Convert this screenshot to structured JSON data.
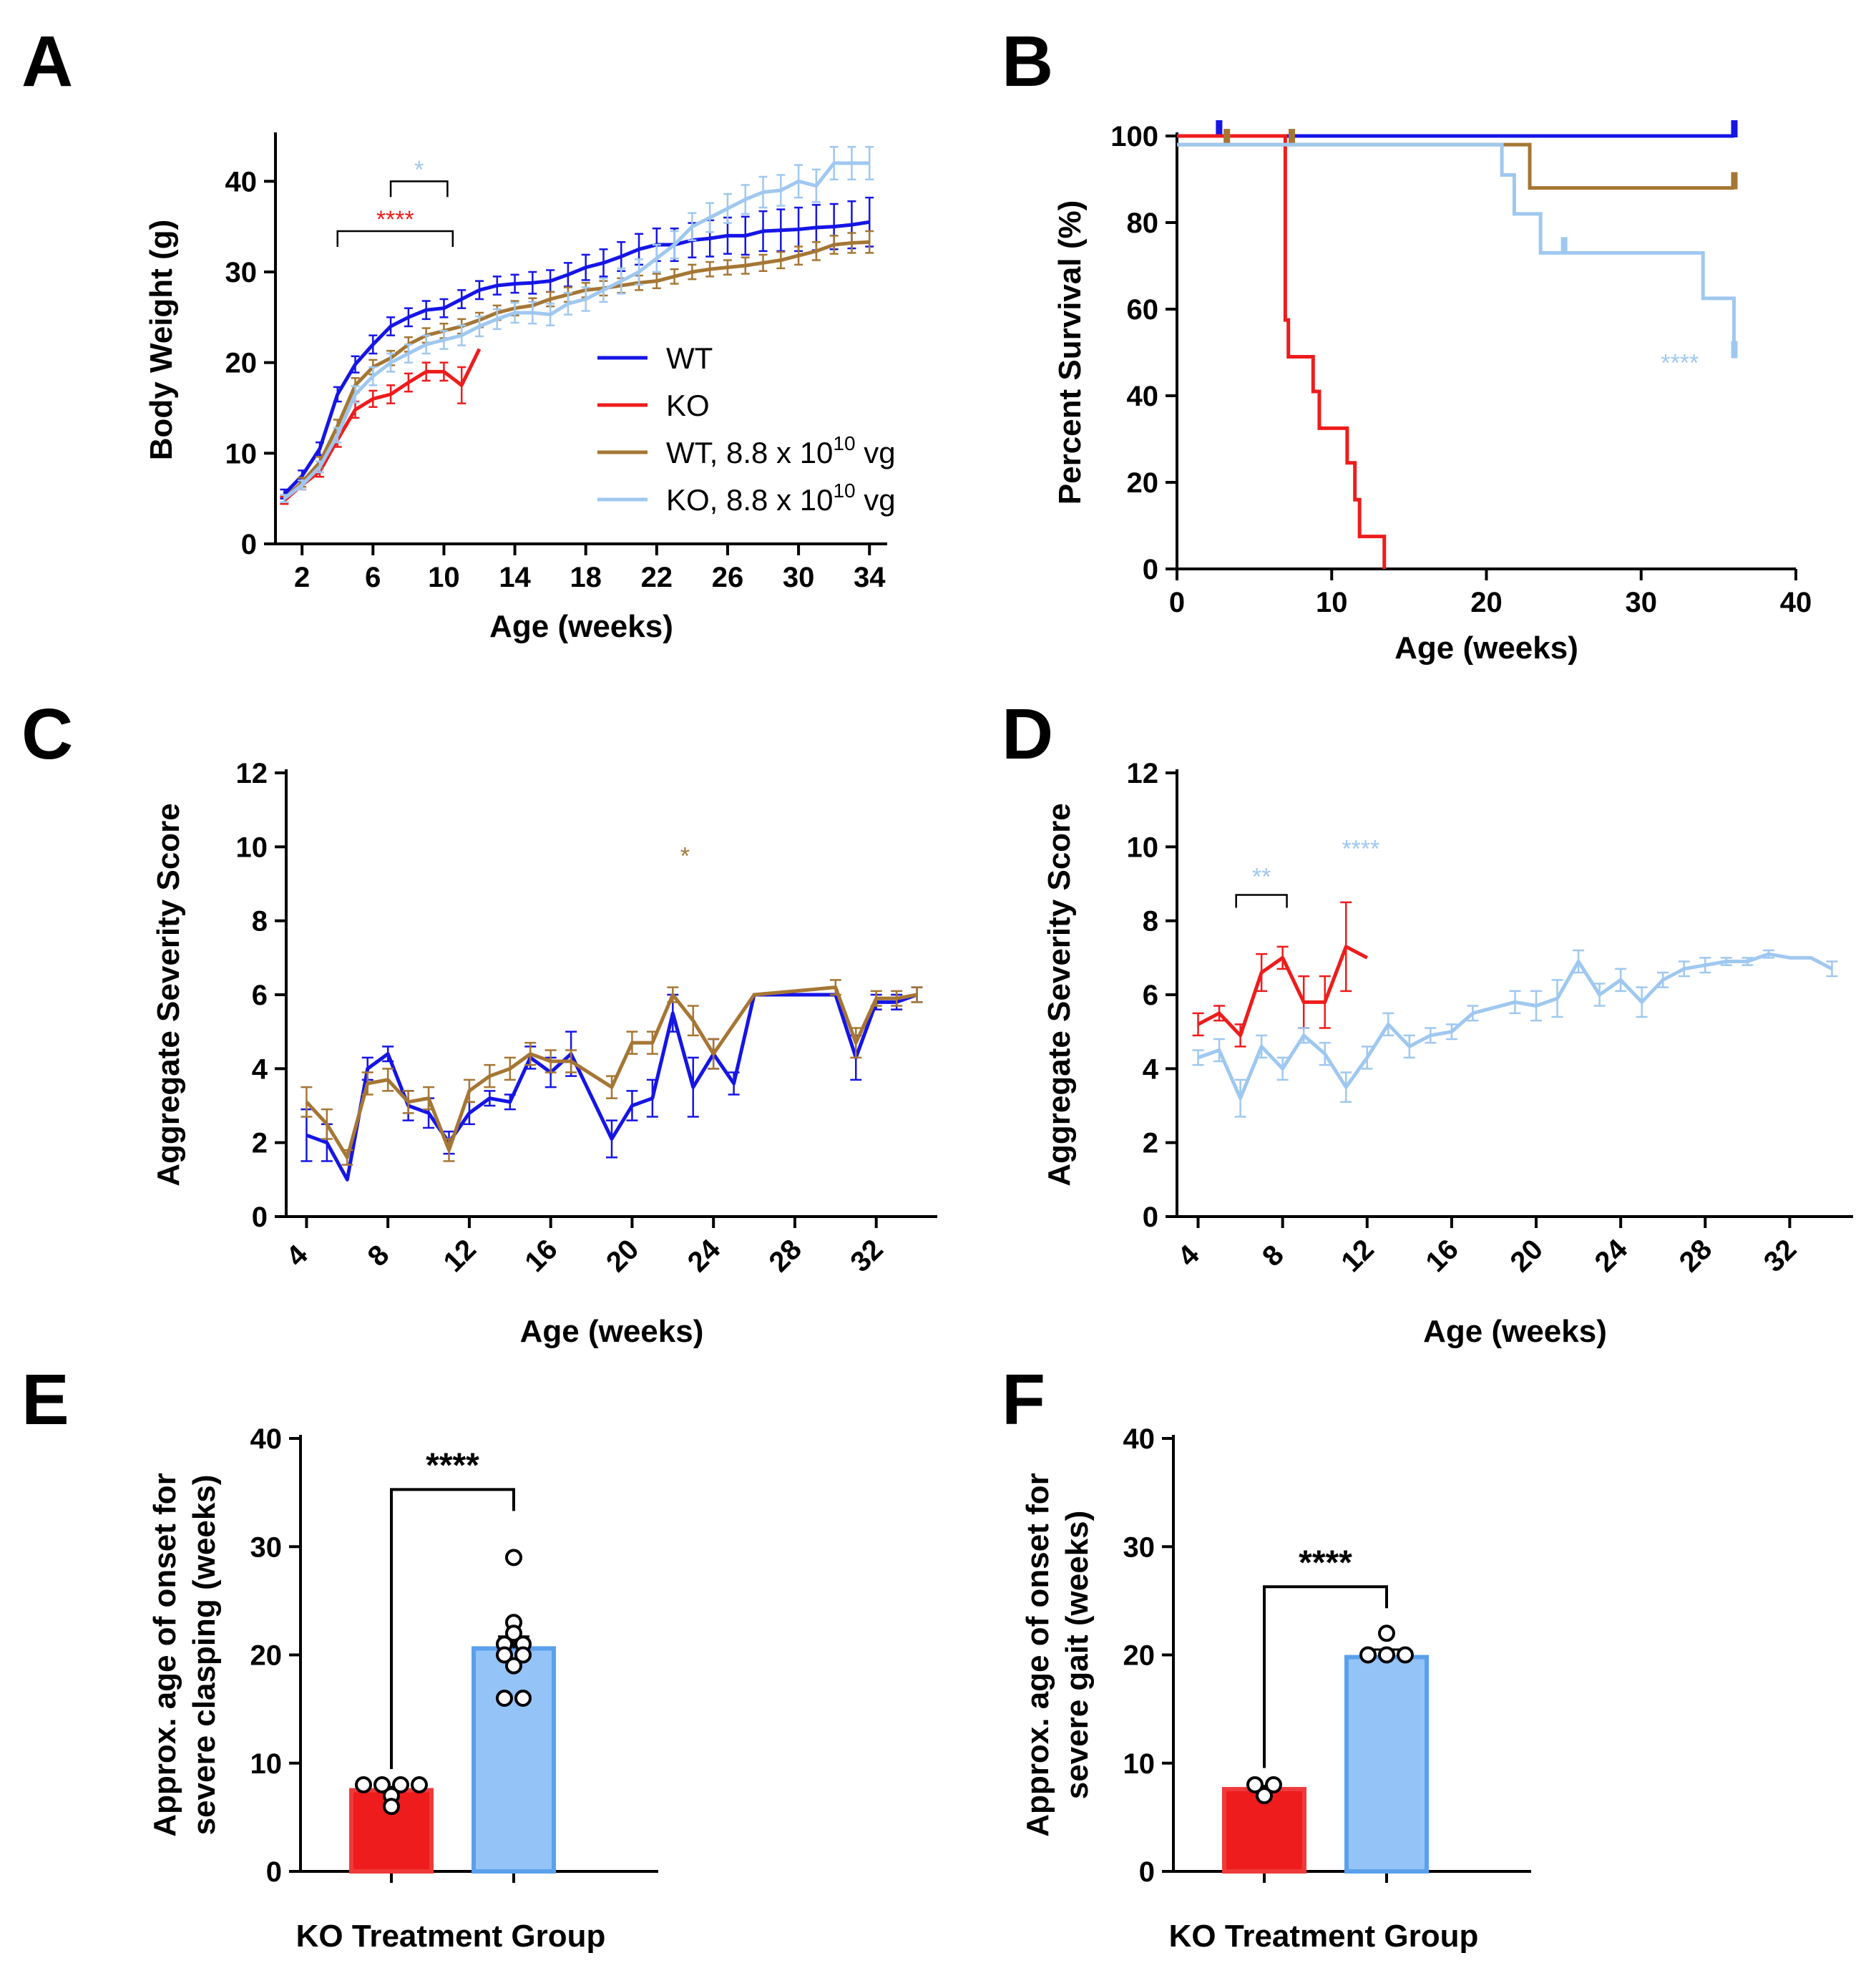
{
  "colors": {
    "wt": "#1515e6",
    "ko": "#ee1c1c",
    "wt_treated": "#a57634",
    "ko_treated": "#9fc8f0",
    "bar_ko": "#ee1c1c",
    "bar_ko_treated": "#94c3f7",
    "sig_red": "#ee1c1c",
    "sig_lightblue": "#9fc8f0",
    "sig_brown": "#a57634"
  },
  "chart_data": [
    {
      "id": "A",
      "panel_label": "A",
      "type": "line",
      "xlabel": "Age (weeks)",
      "ylabel": "Body Weight (g)",
      "xlim": [
        0.5,
        35
      ],
      "ylim": [
        0,
        45
      ],
      "x_ticks": [
        2,
        6,
        10,
        14,
        18,
        22,
        26,
        30,
        34
      ],
      "y_ticks": [
        0,
        10,
        20,
        30,
        40
      ],
      "legend": [
        {
          "label": "WT",
          "color_key": "wt"
        },
        {
          "label": "KO",
          "color_key": "ko"
        },
        {
          "label": "WT, 8.8 x 10",
          "sup": "10",
          "suffix": " vg",
          "color_key": "wt_treated"
        },
        {
          "label": "KO, 8.8 x 10",
          "sup": "10",
          "suffix": " vg",
          "color_key": "ko_treated"
        }
      ],
      "series": [
        {
          "name": "WT",
          "color_key": "wt",
          "x": [
            1,
            2,
            3,
            4,
            5,
            6,
            7,
            8,
            9,
            10,
            11,
            12,
            13,
            14,
            15,
            16,
            17,
            18,
            19,
            20,
            21,
            22,
            23,
            24,
            25,
            26,
            27,
            28,
            29,
            30,
            31,
            32,
            33,
            34
          ],
          "y": [
            5.5,
            7.5,
            10.5,
            16.5,
            19.8,
            22,
            24,
            25,
            25.8,
            26,
            27,
            28,
            28.5,
            28.7,
            28.8,
            29,
            29.7,
            30.5,
            31,
            31.7,
            32.5,
            33,
            33,
            33.5,
            33.7,
            34,
            34,
            34.5,
            34.6,
            34.7,
            34.9,
            35,
            35.2,
            35.5
          ],
          "err": [
            0.5,
            0.6,
            0.7,
            0.8,
            0.9,
            1,
            1,
            1,
            1,
            1,
            1,
            1,
            1,
            1,
            1.2,
            1.2,
            1.3,
            1.4,
            1.5,
            1.6,
            1.7,
            1.8,
            1.8,
            1.9,
            2,
            2,
            2.1,
            2.2,
            2.3,
            2.4,
            2.5,
            2.5,
            2.6,
            2.7
          ]
        },
        {
          "name": "KO",
          "color_key": "ko",
          "x": [
            1,
            2,
            3,
            4,
            5,
            6,
            7,
            8,
            9,
            10,
            11,
            12
          ],
          "y": [
            4.8,
            6.5,
            8,
            11.5,
            14.8,
            16,
            16.5,
            17.8,
            19,
            19,
            17.5,
            21.5
          ],
          "err": [
            0.4,
            0.5,
            0.6,
            0.8,
            0.9,
            0.9,
            1,
            1,
            1,
            1,
            2,
            0
          ]
        },
        {
          "name": "WT, 8.8 x 10^10 vg",
          "color_key": "wt_treated",
          "x": [
            1,
            2,
            3,
            4,
            5,
            6,
            7,
            8,
            9,
            10,
            11,
            12,
            13,
            14,
            15,
            16,
            17,
            18,
            19,
            20,
            21,
            22,
            23,
            24,
            25,
            26,
            27,
            28,
            29,
            30,
            31,
            32,
            33,
            34
          ],
          "y": [
            5,
            6.8,
            9,
            13,
            17.5,
            19.5,
            20.5,
            22,
            23,
            23.5,
            24,
            24.7,
            25.5,
            26,
            26.3,
            27,
            27.5,
            28,
            28.2,
            28.5,
            28.8,
            29,
            29.5,
            30,
            30.3,
            30.5,
            30.7,
            31,
            31.3,
            31.8,
            32.3,
            33,
            33.2,
            33.3
          ],
          "err": [
            0.4,
            0.5,
            0.6,
            0.7,
            0.8,
            0.8,
            0.8,
            0.8,
            0.8,
            0.8,
            0.8,
            0.8,
            0.8,
            0.8,
            0.8,
            0.8,
            0.8,
            0.8,
            0.8,
            0.8,
            0.8,
            0.8,
            0.8,
            0.8,
            0.8,
            0.8,
            0.9,
            0.9,
            0.9,
            1,
            1,
            1,
            1.1,
            1.2
          ]
        },
        {
          "name": "KO, 8.8 x 10^10 vg",
          "color_key": "ko_treated",
          "x": [
            1,
            2,
            3,
            4,
            5,
            6,
            7,
            8,
            9,
            10,
            11,
            12,
            13,
            14,
            15,
            16,
            17,
            18,
            19,
            20,
            21,
            22,
            23,
            24,
            25,
            26,
            27,
            28,
            29,
            30,
            31,
            32,
            33,
            34
          ],
          "y": [
            5,
            6.5,
            8.5,
            12,
            16.5,
            18.5,
            20,
            21,
            22,
            22.5,
            23,
            24,
            24.8,
            25.5,
            25.5,
            25.3,
            26.5,
            27,
            28,
            29,
            30,
            31.5,
            33,
            35,
            36,
            37,
            38,
            38.8,
            39,
            40,
            39.5,
            42,
            42,
            42
          ],
          "err": [
            0.4,
            0.5,
            0.6,
            0.8,
            0.9,
            1,
            1,
            1,
            1,
            1,
            1.1,
            1.1,
            1.1,
            1.1,
            1.2,
            1.2,
            1.2,
            1.3,
            1.3,
            1.4,
            1.4,
            1.5,
            1.5,
            1.5,
            1.6,
            1.6,
            1.6,
            1.7,
            1.7,
            1.8,
            1.8,
            1.8,
            1.8,
            1.8
          ]
        }
      ],
      "annotations": [
        {
          "text": "*",
          "color_key": "sig_lightblue",
          "x1": 7,
          "x2": 10.2,
          "y": 40,
          "text_y": 41.5
        },
        {
          "text": "****",
          "color_key": "sig_red",
          "x1": 4,
          "x2": 10.5,
          "y": 34.5,
          "text_y": 36
        }
      ]
    },
    {
      "id": "B",
      "panel_label": "B",
      "type": "line",
      "subtype": "kaplan-meier",
      "xlabel": "Age (weeks)",
      "ylabel": "Percent Survival (%)",
      "xlim": [
        0,
        40
      ],
      "ylim": [
        0,
        100
      ],
      "x_ticks": [
        0,
        10,
        20,
        30,
        40
      ],
      "y_ticks": [
        0,
        20,
        40,
        60,
        80,
        100
      ],
      "series": [
        {
          "name": "WT",
          "color_key": "wt",
          "steps": [
            [
              0,
              100
            ],
            [
              36,
              100
            ]
          ],
          "censor_x": [
            2.7,
            36
          ]
        },
        {
          "name": "KO",
          "color_key": "ko",
          "steps": [
            [
              0,
              100
            ],
            [
              7,
              100
            ],
            [
              7,
              57.5
            ],
            [
              7.2,
              57.5
            ],
            [
              7.2,
              49
            ],
            [
              8.8,
              49
            ],
            [
              8.8,
              41
            ],
            [
              9.2,
              41
            ],
            [
              9.2,
              32.5
            ],
            [
              11,
              32.5
            ],
            [
              11,
              24.5
            ],
            [
              11.5,
              24.5
            ],
            [
              11.5,
              16
            ],
            [
              11.8,
              16
            ],
            [
              11.8,
              7.5
            ],
            [
              13.4,
              7.5
            ],
            [
              13.4,
              0
            ]
          ],
          "censor_x": []
        },
        {
          "name": "WT, 8.8 x 10^10 vg",
          "color_key": "wt_treated",
          "steps": [
            [
              0,
              98
            ],
            [
              22.8,
              98
            ],
            [
              22.8,
              88
            ],
            [
              36,
              88
            ]
          ],
          "censor_x": [
            3.2,
            7.4,
            36
          ]
        },
        {
          "name": "KO, 8.8 x 10^10 vg",
          "color_key": "ko_treated",
          "steps": [
            [
              0,
              98
            ],
            [
              21,
              98
            ],
            [
              21,
              91
            ],
            [
              21.8,
              91
            ],
            [
              21.8,
              82
            ],
            [
              23.5,
              82
            ],
            [
              23.5,
              73
            ],
            [
              34,
              73
            ],
            [
              34,
              62.5
            ],
            [
              36,
              62.5
            ],
            [
              36,
              49
            ]
          ],
          "censor_x": [
            25,
            36
          ]
        }
      ],
      "annotations": [
        {
          "text": "****",
          "color_key": "sig_lightblue",
          "x": 32.5,
          "y": 48
        }
      ]
    },
    {
      "id": "C",
      "panel_label": "C",
      "type": "line",
      "xlabel": "Age (weeks)",
      "ylabel": "Aggregate Severity Score",
      "xlim": [
        3,
        35
      ],
      "ylim": [
        0,
        12
      ],
      "x_ticks": [
        4,
        8,
        12,
        16,
        20,
        24,
        28,
        32
      ],
      "y_ticks": [
        0,
        2,
        4,
        6,
        8,
        10,
        12
      ],
      "series": [
        {
          "name": "WT",
          "color_key": "wt",
          "x": [
            4,
            5,
            6,
            7,
            8,
            9,
            10,
            11,
            12,
            13,
            14,
            15,
            16,
            17,
            19,
            20,
            21,
            22,
            23,
            24,
            25,
            26,
            30,
            31,
            32,
            33,
            34
          ],
          "y": [
            2.2,
            2,
            1,
            4,
            4.4,
            3,
            2.8,
            2,
            2.8,
            3.2,
            3.1,
            4.3,
            3.9,
            4.4,
            2.1,
            3,
            3.2,
            5.5,
            3.5,
            4.4,
            3.6,
            6,
            6,
            4.3,
            5.8,
            5.8,
            6
          ],
          "err": [
            0.7,
            0.5,
            0,
            0.3,
            0.2,
            0.4,
            0.4,
            0.3,
            0.3,
            0.2,
            0.2,
            0.3,
            0.4,
            0.6,
            0.5,
            0.4,
            0.5,
            0.5,
            0.8,
            0.4,
            0.3,
            0,
            0,
            0.6,
            0.2,
            0.2,
            0.2
          ]
        },
        {
          "name": "WT, 8.8 x 10^10 vg",
          "color_key": "wt_treated",
          "x": [
            4,
            5,
            6,
            7,
            8,
            9,
            10,
            11,
            12,
            13,
            14,
            15,
            16,
            17,
            19,
            20,
            21,
            22,
            23,
            24,
            26,
            30,
            31,
            32,
            33,
            34
          ],
          "y": [
            3.1,
            2.5,
            1.6,
            3.6,
            3.7,
            3.1,
            3.2,
            1.8,
            3.4,
            3.8,
            4,
            4.4,
            4.2,
            4.2,
            3.5,
            4.7,
            4.7,
            6,
            5.3,
            4.4,
            6,
            6.2,
            4.7,
            5.9,
            5.9,
            6
          ],
          "err": [
            0.4,
            0.4,
            0.2,
            0.3,
            0.3,
            0.3,
            0.3,
            0.3,
            0.3,
            0.3,
            0.3,
            0.3,
            0.3,
            0.3,
            0.3,
            0.3,
            0.3,
            0.2,
            0.4,
            0.4,
            0,
            0.2,
            0.4,
            0.2,
            0.2,
            0.2
          ]
        }
      ],
      "annotations": [
        {
          "text": "*",
          "color_key": "sig_brown",
          "x": 22.6,
          "y": 9.8
        }
      ]
    },
    {
      "id": "D",
      "panel_label": "D",
      "type": "line",
      "xlabel": "Age (weeks)",
      "ylabel": "Aggregate Severity Score",
      "xlim": [
        3,
        35
      ],
      "ylim": [
        0,
        12
      ],
      "x_ticks": [
        4,
        8,
        12,
        16,
        20,
        24,
        28,
        32
      ],
      "y_ticks": [
        0,
        2,
        4,
        6,
        8,
        10,
        12
      ],
      "series": [
        {
          "name": "KO",
          "color_key": "ko",
          "x": [
            4,
            5,
            6,
            7,
            8,
            9,
            10,
            11,
            12
          ],
          "y": [
            5.2,
            5.5,
            4.9,
            6.6,
            7,
            5.8,
            5.8,
            7.3,
            7
          ],
          "err": [
            0.3,
            0.2,
            0.3,
            0.5,
            0.3,
            0.7,
            0.7,
            1.2,
            0
          ]
        },
        {
          "name": "KO, 8.8 x 10^10 vg",
          "color_key": "ko_treated",
          "x": [
            4,
            5,
            6,
            7,
            8,
            9,
            10,
            11,
            12,
            13,
            14,
            15,
            16,
            17,
            19,
            20,
            21,
            22,
            23,
            24,
            25,
            26,
            27,
            28,
            29,
            30,
            31,
            32,
            33,
            34
          ],
          "y": [
            4.3,
            4.5,
            3.2,
            4.6,
            4,
            4.9,
            4.4,
            3.5,
            4.3,
            5.2,
            4.6,
            4.9,
            5,
            5.5,
            5.8,
            5.7,
            5.9,
            6.9,
            6,
            6.4,
            5.8,
            6.4,
            6.7,
            6.8,
            6.9,
            6.9,
            7.1,
            7,
            7,
            6.7
          ],
          "err": [
            0.2,
            0.3,
            0.5,
            0.3,
            0.3,
            0.2,
            0.3,
            0.4,
            0.3,
            0.3,
            0.3,
            0.2,
            0.2,
            0.2,
            0.3,
            0.4,
            0.5,
            0.3,
            0.3,
            0.3,
            0.4,
            0.2,
            0.2,
            0.2,
            0.1,
            0.1,
            0.1,
            0,
            0,
            0.2
          ]
        }
      ],
      "annotations": [
        {
          "text": "**",
          "color_key": "sig_lightblue",
          "x1": 5.8,
          "x2": 8.2,
          "y": 8.7,
          "text_y": 9.2
        },
        {
          "text": "****",
          "color_key": "sig_lightblue",
          "x": 11.7,
          "y": 10
        }
      ]
    },
    {
      "id": "E",
      "panel_label": "E",
      "type": "bar",
      "xlabel": "KO Treatment Group",
      "ylabel_line1": "Approx. age of onset for",
      "ylabel_line2": "severe clasping (weeks)",
      "ylim": [
        0,
        40
      ],
      "y_ticks": [
        0,
        10,
        20,
        30,
        40
      ],
      "bars": [
        {
          "color_key": "bar_ko",
          "value": 7.5,
          "err": 0.3,
          "points": [
            8,
            8,
            8,
            8,
            7,
            6
          ]
        },
        {
          "color_key": "bar_ko_treated",
          "value": 20.6,
          "err": 1.1,
          "points": [
            29,
            23,
            22,
            21,
            20,
            21,
            20,
            19,
            16,
            16
          ]
        }
      ],
      "significance": "****"
    },
    {
      "id": "F",
      "panel_label": "F",
      "type": "bar",
      "xlabel": "KO Treatment Group",
      "ylabel_line1": "Approx. age of onset for",
      "ylabel_line2": "severe gait (weeks)",
      "ylim": [
        0,
        40
      ],
      "y_ticks": [
        0,
        10,
        20,
        30,
        40
      ],
      "bars": [
        {
          "color_key": "bar_ko",
          "value": 7.6,
          "err": 0.3,
          "points": [
            7,
            8,
            8
          ]
        },
        {
          "color_key": "bar_ko_treated",
          "value": 19.8,
          "err": 0.7,
          "points": [
            22,
            20,
            20,
            20
          ]
        }
      ],
      "significance": "****"
    }
  ]
}
